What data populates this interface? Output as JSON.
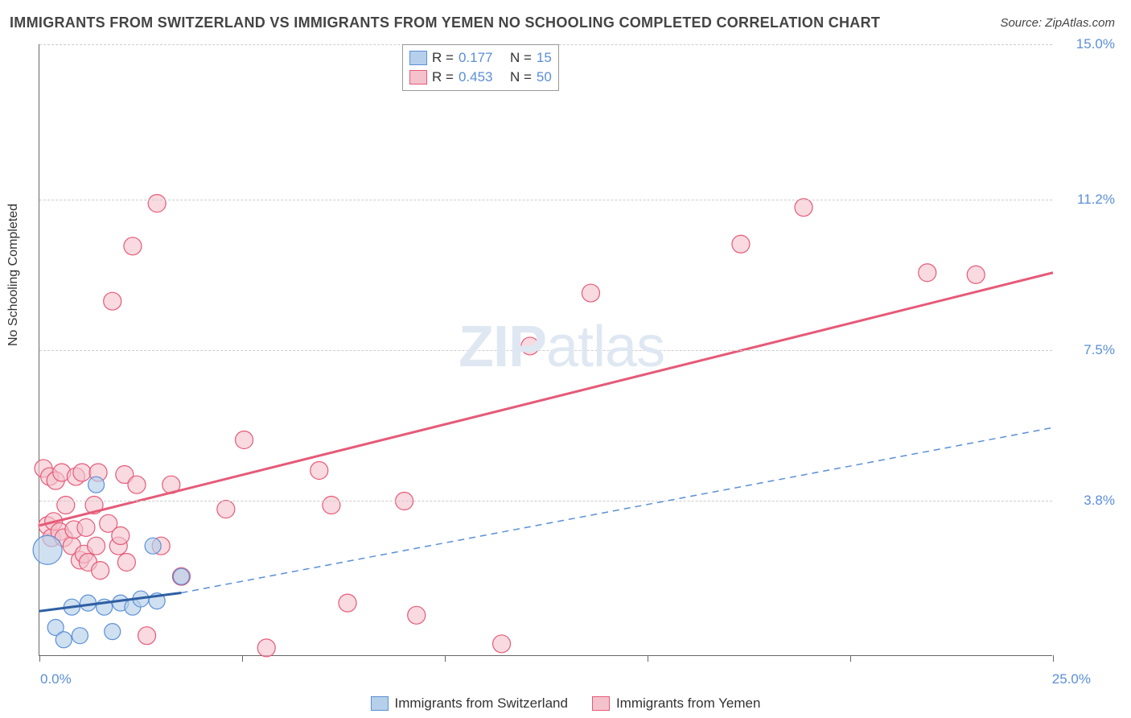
{
  "title": "IMMIGRANTS FROM SWITZERLAND VS IMMIGRANTS FROM YEMEN NO SCHOOLING COMPLETED CORRELATION CHART",
  "source": "Source: ZipAtlas.com",
  "y_axis_label": "No Schooling Completed",
  "watermark_zip": "ZIP",
  "watermark_atlas": "atlas",
  "chart": {
    "type": "scatter",
    "background_color": "#ffffff",
    "grid_color": "#cccccc",
    "axis_color": "#666666",
    "xlim": [
      0,
      25
    ],
    "ylim": [
      0,
      15
    ],
    "x_min_label": "0.0%",
    "x_max_label": "25.0%",
    "y_ticks": [
      {
        "v": 3.8,
        "label": "3.8%"
      },
      {
        "v": 7.5,
        "label": "7.5%"
      },
      {
        "v": 11.2,
        "label": "11.2%"
      },
      {
        "v": 15.0,
        "label": "15.0%"
      }
    ],
    "x_tick_positions": [
      0,
      5,
      10,
      15,
      20,
      25
    ],
    "series": [
      {
        "name": "Immigrants from Switzerland",
        "color_fill": "#b6cfea",
        "color_stroke": "#5b8fd6",
        "marker_radius": 10,
        "marker_opacity": 0.65,
        "stats": {
          "R": "0.177",
          "N": "15"
        },
        "trend_line": {
          "solid": {
            "x1": 0,
            "y1": 1.1,
            "x2": 3.5,
            "y2": 1.55,
            "width": 3,
            "color": "#2f5fa3"
          },
          "dashed": {
            "x1": 3.5,
            "y1": 1.55,
            "x2": 25,
            "y2": 5.6,
            "width": 1.5,
            "color": "#5b8fd6",
            "dash": "8,6"
          }
        },
        "points": [
          {
            "x": 0.2,
            "y": 2.6,
            "r": 18
          },
          {
            "x": 0.4,
            "y": 0.7
          },
          {
            "x": 0.6,
            "y": 0.4
          },
          {
            "x": 0.8,
            "y": 1.2
          },
          {
            "x": 1.0,
            "y": 0.5
          },
          {
            "x": 1.2,
            "y": 1.3
          },
          {
            "x": 1.4,
            "y": 4.2
          },
          {
            "x": 1.6,
            "y": 1.2
          },
          {
            "x": 1.8,
            "y": 0.6
          },
          {
            "x": 2.0,
            "y": 1.3
          },
          {
            "x": 2.3,
            "y": 1.2
          },
          {
            "x": 2.5,
            "y": 1.4
          },
          {
            "x": 2.8,
            "y": 2.7
          },
          {
            "x": 2.9,
            "y": 1.35
          },
          {
            "x": 3.5,
            "y": 1.95
          }
        ]
      },
      {
        "name": "Immigrants from Yemen",
        "color_fill": "#f4c2cc",
        "color_stroke": "#e65a78",
        "marker_radius": 11,
        "marker_opacity": 0.6,
        "stats": {
          "R": "0.453",
          "N": "50"
        },
        "trend_line": {
          "solid": {
            "x1": 0,
            "y1": 3.2,
            "x2": 25,
            "y2": 9.4,
            "width": 3,
            "color": "#e65a78"
          }
        },
        "points": [
          {
            "x": 0.1,
            "y": 4.6
          },
          {
            "x": 0.2,
            "y": 3.2
          },
          {
            "x": 0.25,
            "y": 4.4
          },
          {
            "x": 0.3,
            "y": 2.9
          },
          {
            "x": 0.35,
            "y": 3.3
          },
          {
            "x": 0.4,
            "y": 4.3
          },
          {
            "x": 0.5,
            "y": 3.05
          },
          {
            "x": 0.55,
            "y": 4.5
          },
          {
            "x": 0.6,
            "y": 2.9
          },
          {
            "x": 0.65,
            "y": 3.7
          },
          {
            "x": 0.8,
            "y": 2.7
          },
          {
            "x": 0.85,
            "y": 3.1
          },
          {
            "x": 0.9,
            "y": 4.4
          },
          {
            "x": 1.0,
            "y": 2.35
          },
          {
            "x": 1.05,
            "y": 4.5
          },
          {
            "x": 1.1,
            "y": 2.5
          },
          {
            "x": 1.15,
            "y": 3.15
          },
          {
            "x": 1.2,
            "y": 2.3
          },
          {
            "x": 1.35,
            "y": 3.7
          },
          {
            "x": 1.4,
            "y": 2.7
          },
          {
            "x": 1.45,
            "y": 4.5
          },
          {
            "x": 1.5,
            "y": 2.1
          },
          {
            "x": 1.7,
            "y": 3.25
          },
          {
            "x": 1.8,
            "y": 8.7
          },
          {
            "x": 1.95,
            "y": 2.7
          },
          {
            "x": 2.0,
            "y": 2.95
          },
          {
            "x": 2.1,
            "y": 4.45
          },
          {
            "x": 2.15,
            "y": 2.3
          },
          {
            "x": 2.3,
            "y": 10.05
          },
          {
            "x": 2.4,
            "y": 4.2
          },
          {
            "x": 2.65,
            "y": 0.5
          },
          {
            "x": 2.9,
            "y": 11.1
          },
          {
            "x": 3.0,
            "y": 2.7
          },
          {
            "x": 3.25,
            "y": 4.2
          },
          {
            "x": 3.5,
            "y": 1.95
          },
          {
            "x": 4.6,
            "y": 3.6
          },
          {
            "x": 5.05,
            "y": 5.3
          },
          {
            "x": 5.6,
            "y": 0.2
          },
          {
            "x": 6.9,
            "y": 4.55
          },
          {
            "x": 7.2,
            "y": 3.7
          },
          {
            "x": 7.6,
            "y": 1.3
          },
          {
            "x": 9.0,
            "y": 3.8
          },
          {
            "x": 9.3,
            "y": 1.0
          },
          {
            "x": 11.4,
            "y": 0.3
          },
          {
            "x": 12.1,
            "y": 7.6
          },
          {
            "x": 13.6,
            "y": 8.9
          },
          {
            "x": 17.3,
            "y": 10.1
          },
          {
            "x": 18.85,
            "y": 11.0
          },
          {
            "x": 21.9,
            "y": 9.4
          },
          {
            "x": 23.1,
            "y": 9.35
          }
        ]
      }
    ]
  },
  "legend_labels": {
    "r_label": "R =",
    "n_label": "N ="
  },
  "bottom_legend": {
    "series1": "Immigrants from Switzerland",
    "series2": "Immigrants from Yemen"
  },
  "colors": {
    "blue_text": "#5b8fd6",
    "text": "#333333"
  }
}
